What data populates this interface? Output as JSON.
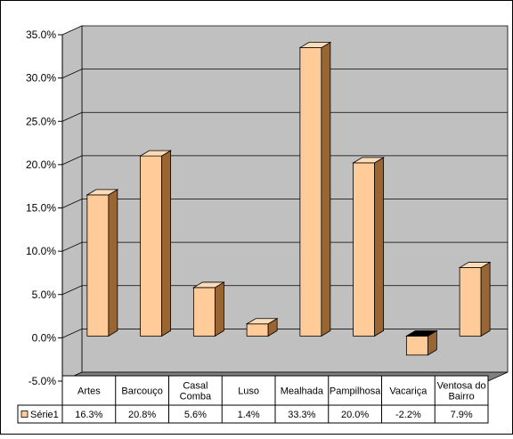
{
  "chart_data": {
    "type": "bar",
    "categories": [
      [
        "Artes"
      ],
      [
        "Barcouço"
      ],
      [
        "Casal",
        "Comba"
      ],
      [
        "Luso"
      ],
      [
        "Mealhada"
      ],
      [
        "Pampilhosa"
      ],
      [
        "Vacariça"
      ],
      [
        "Ventosa do",
        "Bairro"
      ]
    ],
    "series": [
      {
        "name": "Série1",
        "values": [
          16.3,
          20.8,
          5.6,
          1.4,
          33.3,
          20.0,
          -2.2,
          7.9
        ],
        "labels": [
          "16.3%",
          "20.8%",
          "5.6%",
          "1.4%",
          "33.3%",
          "20.0%",
          "-2.2%",
          "7.9%"
        ]
      }
    ],
    "ylim": [
      -5,
      35
    ],
    "yticks": [
      -5,
      0,
      5,
      10,
      15,
      20,
      25,
      30,
      35
    ],
    "ytick_labels": [
      "-5.0%",
      "0.0%",
      "5.0%",
      "10.0%",
      "15.0%",
      "20.0%",
      "25.0%",
      "30.0%",
      "35.0%"
    ],
    "grid": true,
    "three_d": true,
    "data_table": true,
    "colors": {
      "bar_front": "#ffcc99",
      "bar_top": "#ffdcb8",
      "bar_side": "#996633",
      "negative_top": "#000000",
      "wall": "#c0c0c0",
      "floor": "#808080"
    }
  }
}
